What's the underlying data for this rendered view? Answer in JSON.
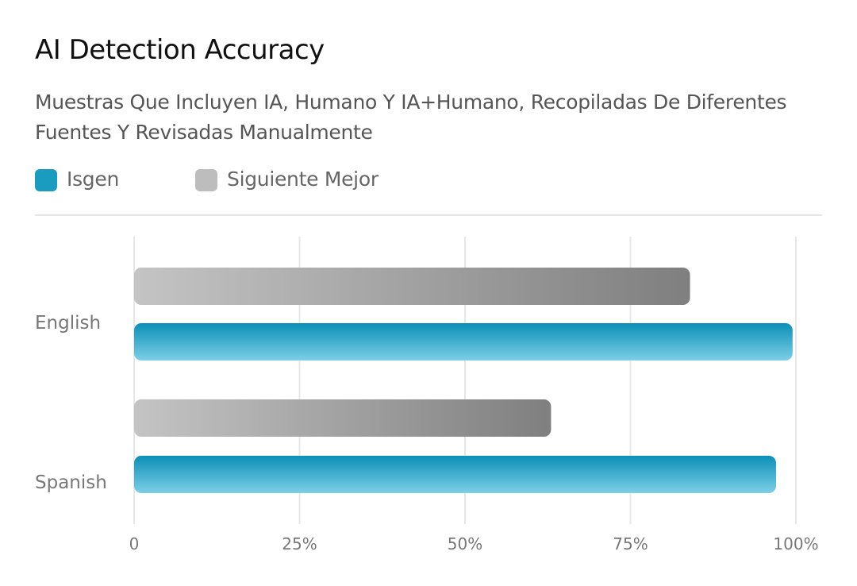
{
  "header": {
    "title": "AI Detection Accuracy",
    "subtitle": "Muestras Que Incluyen IA, Humano Y IA+Humano, Recopiladas De Diferentes Fuentes Y Revisadas Manualmente"
  },
  "legend": {
    "items": [
      {
        "label": "Isgen",
        "color": "#1a9bc0"
      },
      {
        "label": "Siguiente Mejor",
        "color": "#bdbdbd"
      }
    ]
  },
  "chart_data": {
    "type": "bar",
    "orientation": "horizontal",
    "title": "AI Detection Accuracy",
    "subtitle": "Muestras Que Incluyen IA, Humano Y IA+Humano, Recopiladas De Diferentes Fuentes Y Revisadas Manualmente",
    "categories": [
      "English",
      "Spanish"
    ],
    "series": [
      {
        "name": "Siguiente Mejor",
        "values": [
          84,
          63
        ],
        "color": "#8a8a8a"
      },
      {
        "name": "Isgen",
        "values": [
          99.5,
          97
        ],
        "color": "#1a9bc0"
      }
    ],
    "xlim": [
      0,
      100
    ],
    "ticks": [
      "0",
      "25%",
      "50%",
      "75%",
      "100%"
    ],
    "tick_values": [
      0,
      25,
      50,
      75,
      100
    ],
    "grid": true,
    "legend_position": "top-left"
  }
}
